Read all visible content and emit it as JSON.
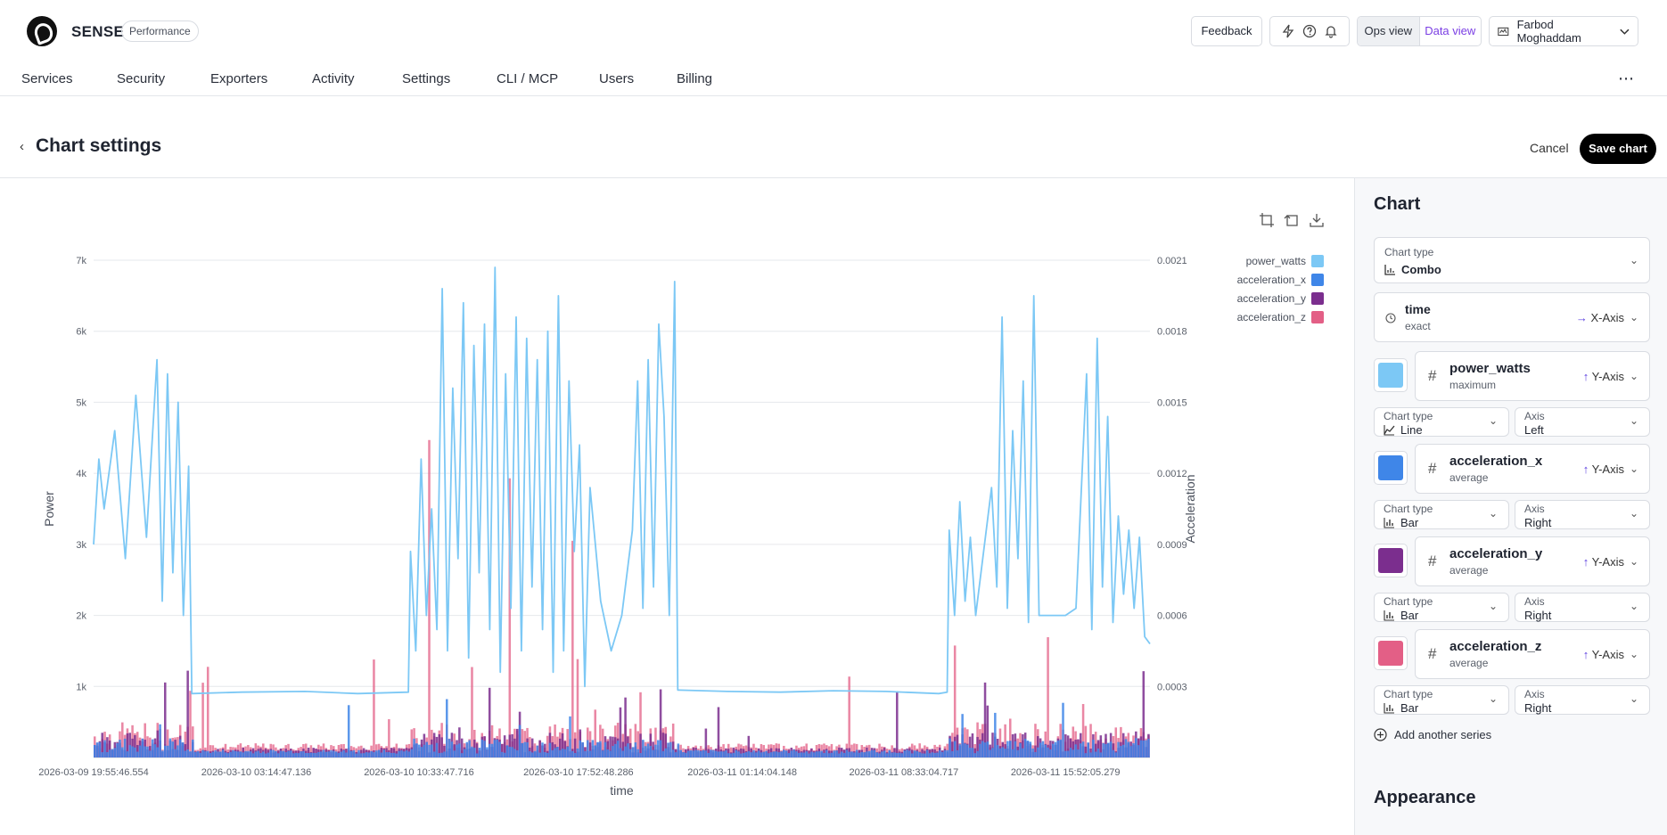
{
  "app": {
    "brand": "SENSE",
    "badge": "Performance"
  },
  "topbar": {
    "feedback": "Feedback",
    "ops_view": "Ops view",
    "data_view": "Data view",
    "user_name": "Farbod Moghaddam"
  },
  "nav": {
    "items": [
      {
        "label": "Services"
      },
      {
        "label": "Security"
      },
      {
        "label": "Exporters"
      },
      {
        "label": "Activity"
      },
      {
        "label": "Settings"
      },
      {
        "label": "CLI / MCP"
      },
      {
        "label": "Users"
      },
      {
        "label": "Billing"
      }
    ],
    "more": "⋯"
  },
  "page": {
    "title": "Chart settings",
    "cancel": "Cancel",
    "save": "Save chart"
  },
  "panel": {
    "title": "Chart",
    "chart_type_label": "Chart type",
    "chart_type_value": "Combo",
    "x_field": {
      "name": "time",
      "agg": "exact",
      "axis": "X-Axis"
    },
    "series": [
      {
        "name": "power_watts",
        "agg": "maximum",
        "axis": "Y-Axis",
        "color": "#7cc8f5",
        "chart_type": "Line",
        "side": "Left"
      },
      {
        "name": "acceleration_x",
        "agg": "average",
        "axis": "Y-Axis",
        "color": "#3f86e8",
        "chart_type": "Bar",
        "side": "Right"
      },
      {
        "name": "acceleration_y",
        "agg": "average",
        "axis": "Y-Axis",
        "color": "#7b2e8e",
        "chart_type": "Bar",
        "side": "Right"
      },
      {
        "name": "acceleration_z",
        "agg": "average",
        "axis": "Y-Axis",
        "color": "#e35f86",
        "chart_type": "Bar",
        "side": "Right"
      }
    ],
    "chart_type_small": "Chart type",
    "axis_small": "Axis",
    "add_series": "Add another series",
    "appearance": "Appearance"
  },
  "chart_data": {
    "type": "combo",
    "xlabel": "time",
    "ylabel_left": "Power",
    "ylabel_right": "Acceleration",
    "y_left_ticks": [
      "1k",
      "2k",
      "3k",
      "4k",
      "5k",
      "6k",
      "7k"
    ],
    "y_left_range": [
      0,
      7000
    ],
    "y_right_ticks": [
      "0.0003",
      "0.0006",
      "0.0009",
      "0.0012",
      "0.0015",
      "0.0018",
      "0.0021"
    ],
    "y_right_range": [
      0,
      0.0021
    ],
    "x_ticks": [
      "2026-03-09 19:55:46.554",
      "2026-03-10 03:14:47.136",
      "2026-03-10 10:33:47.716",
      "2026-03-10 17:52:48.286",
      "2026-03-11 01:14:04.148",
      "2026-03-11 08:33:04.717",
      "2026-03-11 15:52:05.279"
    ],
    "legend": [
      "power_watts",
      "acceleration_x",
      "acceleration_y",
      "acceleration_z"
    ],
    "grid": true,
    "series": [
      {
        "name": "power_watts",
        "type": "line",
        "axis": "left",
        "profile": [
          [
            0,
            3000
          ],
          [
            0.005,
            4200
          ],
          [
            0.01,
            3500
          ],
          [
            0.02,
            4600
          ],
          [
            0.03,
            2800
          ],
          [
            0.04,
            5100
          ],
          [
            0.05,
            3100
          ],
          [
            0.06,
            5600
          ],
          [
            0.065,
            2200
          ],
          [
            0.07,
            5400
          ],
          [
            0.075,
            2600
          ],
          [
            0.08,
            5000
          ],
          [
            0.085,
            2000
          ],
          [
            0.09,
            4100
          ],
          [
            0.093,
            900
          ],
          [
            0.14,
            920
          ],
          [
            0.2,
            930
          ],
          [
            0.25,
            900
          ],
          [
            0.298,
            920
          ],
          [
            0.3,
            2900
          ],
          [
            0.305,
            1500
          ],
          [
            0.31,
            4200
          ],
          [
            0.315,
            2000
          ],
          [
            0.32,
            3500
          ],
          [
            0.325,
            1800
          ],
          [
            0.33,
            6600
          ],
          [
            0.335,
            1500
          ],
          [
            0.34,
            5200
          ],
          [
            0.345,
            2800
          ],
          [
            0.35,
            6400
          ],
          [
            0.355,
            1400
          ],
          [
            0.36,
            5800
          ],
          [
            0.365,
            2600
          ],
          [
            0.37,
            6100
          ],
          [
            0.375,
            1800
          ],
          [
            0.38,
            6900
          ],
          [
            0.385,
            1200
          ],
          [
            0.39,
            5400
          ],
          [
            0.395,
            2100
          ],
          [
            0.4,
            6200
          ],
          [
            0.405,
            1500
          ],
          [
            0.41,
            5900
          ],
          [
            0.415,
            2400
          ],
          [
            0.42,
            5600
          ],
          [
            0.425,
            1800
          ],
          [
            0.43,
            6000
          ],
          [
            0.435,
            1200
          ],
          [
            0.44,
            6500
          ],
          [
            0.445,
            1500
          ],
          [
            0.45,
            5300
          ],
          [
            0.455,
            2900
          ],
          [
            0.46,
            4400
          ],
          [
            0.465,
            1000
          ],
          [
            0.47,
            3800
          ],
          [
            0.48,
            2200
          ],
          [
            0.49,
            1500
          ],
          [
            0.5,
            2000
          ],
          [
            0.51,
            3200
          ],
          [
            0.515,
            5300
          ],
          [
            0.52,
            2100
          ],
          [
            0.525,
            5600
          ],
          [
            0.53,
            2400
          ],
          [
            0.535,
            6100
          ],
          [
            0.54,
            4800
          ],
          [
            0.545,
            2000
          ],
          [
            0.55,
            6700
          ],
          [
            0.553,
            950
          ],
          [
            0.6,
            930
          ],
          [
            0.65,
            920
          ],
          [
            0.7,
            940
          ],
          [
            0.75,
            930
          ],
          [
            0.8,
            900
          ],
          [
            0.808,
            920
          ],
          [
            0.81,
            3200
          ],
          [
            0.815,
            2000
          ],
          [
            0.82,
            3600
          ],
          [
            0.825,
            2200
          ],
          [
            0.83,
            3100
          ],
          [
            0.835,
            2000
          ],
          [
            0.85,
            3800
          ],
          [
            0.855,
            2400
          ],
          [
            0.86,
            6200
          ],
          [
            0.865,
            2100
          ],
          [
            0.87,
            4600
          ],
          [
            0.875,
            2800
          ],
          [
            0.88,
            5300
          ],
          [
            0.885,
            1900
          ],
          [
            0.89,
            6500
          ],
          [
            0.895,
            2000
          ],
          [
            0.9,
            2000
          ],
          [
            0.92,
            2000
          ],
          [
            0.93,
            2100
          ],
          [
            0.94,
            5400
          ],
          [
            0.945,
            1800
          ],
          [
            0.95,
            5900
          ],
          [
            0.955,
            2400
          ],
          [
            0.96,
            4800
          ],
          [
            0.965,
            1900
          ],
          [
            0.97,
            3400
          ],
          [
            0.975,
            2300
          ],
          [
            0.98,
            3200
          ],
          [
            0.985,
            2100
          ],
          [
            0.99,
            3100
          ],
          [
            0.995,
            1700
          ],
          [
            1.0,
            1600
          ]
        ]
      },
      {
        "name": "acceleration_x",
        "type": "bar",
        "axis": "right"
      },
      {
        "name": "acceleration_y",
        "type": "bar",
        "axis": "right"
      },
      {
        "name": "acceleration_z",
        "type": "bar",
        "axis": "right"
      }
    ]
  }
}
